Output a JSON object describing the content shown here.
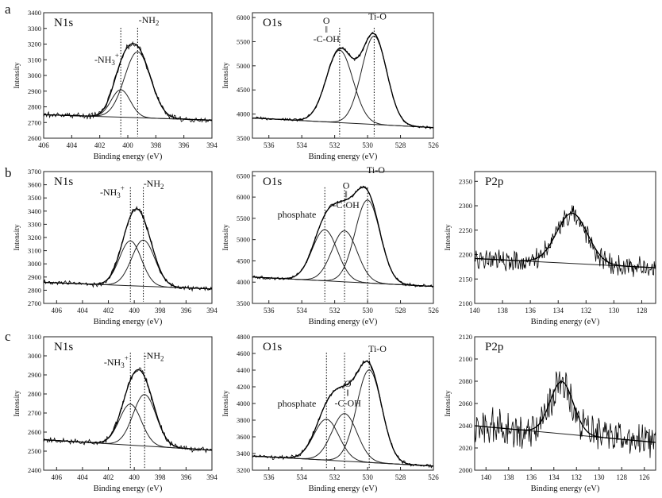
{
  "figure": {
    "row_labels": [
      "a",
      "b",
      "c"
    ]
  },
  "chart_data": [
    {
      "type": "line",
      "id": "a-n1s",
      "row": 0,
      "col": 0,
      "title": "N1s",
      "xlabel": "Binding energy (eV)",
      "ylabel": "Intensity",
      "xlim": [
        406,
        394
      ],
      "ylim": [
        2600,
        3400
      ],
      "xticks": [
        406,
        404,
        402,
        400,
        398,
        396,
        394
      ],
      "yticks": [
        2600,
        2700,
        2800,
        2900,
        3000,
        3100,
        3200,
        3300,
        3400
      ],
      "baseline": {
        "x0": 406,
        "y0": 2750,
        "x1": 394,
        "y1": 2715
      },
      "peaks": [
        {
          "name": "-NH3+",
          "center": 400.5,
          "height": 175,
          "fwhm": 1.6
        },
        {
          "name": "-NH2",
          "center": 399.3,
          "height": 420,
          "fwhm": 2.2
        }
      ],
      "dotted_lines": [
        400.5,
        399.3
      ],
      "noise": 15,
      "annotations": [
        {
          "text": "-NH3+",
          "x": 401.5,
          "y": 3080
        },
        {
          "text": "-NH2",
          "x": 398.5,
          "y": 3335
        }
      ]
    },
    {
      "type": "line",
      "id": "a-o1s",
      "row": 0,
      "col": 1,
      "title": "O1s",
      "xlabel": "Binding energy (eV)",
      "ylabel": "Intensity",
      "xlim": [
        537,
        526
      ],
      "ylim": [
        3500,
        6100
      ],
      "xticks": [
        536,
        534,
        532,
        530,
        528,
        526
      ],
      "yticks": [
        3500,
        4000,
        4500,
        5000,
        5500,
        6000
      ],
      "baseline": {
        "x0": 537,
        "y0": 3920,
        "x1": 526,
        "y1": 3720
      },
      "peaks": [
        {
          "name": "O=C-OH",
          "center": 531.7,
          "height": 1500,
          "fwhm": 1.9
        },
        {
          "name": "Ti-O",
          "center": 529.6,
          "height": 1830,
          "fwhm": 1.8
        }
      ],
      "dotted_lines": [
        531.7,
        529.6
      ],
      "noise": 25,
      "annotations": [
        {
          "text": "O",
          "x": 532.5,
          "y": 5870
        },
        {
          "text": "ǁ",
          "x": 532.5,
          "y": 5690
        },
        {
          "text": "-C-OH",
          "x": 532.5,
          "y": 5490
        },
        {
          "text": "Ti-O",
          "x": 529.4,
          "y": 5960
        }
      ]
    },
    {
      "type": "line",
      "id": "b-n1s",
      "row": 1,
      "col": 0,
      "title": "N1s",
      "xlabel": "Binding energy (eV)",
      "ylabel": "Intensity",
      "xlim": [
        407,
        394
      ],
      "ylim": [
        2700,
        3700
      ],
      "xticks": [
        406,
        404,
        402,
        400,
        398,
        396,
        394
      ],
      "yticks": [
        2700,
        2800,
        2900,
        3000,
        3100,
        3200,
        3300,
        3400,
        3500,
        3600,
        3700
      ],
      "baseline": {
        "x0": 407,
        "y0": 2860,
        "x1": 394,
        "y1": 2810
      },
      "peaks": [
        {
          "name": "-NH3+",
          "center": 400.3,
          "height": 340,
          "fwhm": 2.0
        },
        {
          "name": "-NH2",
          "center": 399.3,
          "height": 350,
          "fwhm": 2.1
        }
      ],
      "dotted_lines": [
        400.3,
        399.3
      ],
      "noise": 15,
      "annotations": [
        {
          "text": "-NH3+",
          "x": 401.7,
          "y": 3520
        },
        {
          "text": "-NH2",
          "x": 398.5,
          "y": 3585
        }
      ]
    },
    {
      "type": "line",
      "id": "b-o1s",
      "row": 1,
      "col": 1,
      "title": "O1s",
      "xlabel": "Binding energy (eV)",
      "ylabel": "Intensity",
      "xlim": [
        537,
        526
      ],
      "ylim": [
        3500,
        6600
      ],
      "xticks": [
        536,
        534,
        532,
        530,
        528,
        526
      ],
      "yticks": [
        3500,
        4000,
        4500,
        5000,
        5500,
        6000,
        6500
      ],
      "baseline": {
        "x0": 537,
        "y0": 4120,
        "x1": 526,
        "y1": 3900
      },
      "peaks": [
        {
          "name": "phosphate",
          "center": 532.6,
          "height": 1200,
          "fwhm": 1.8
        },
        {
          "name": "O=C-OH",
          "center": 531.4,
          "height": 1200,
          "fwhm": 1.8
        },
        {
          "name": "Ti-O",
          "center": 530.0,
          "height": 1950,
          "fwhm": 1.8
        }
      ],
      "dotted_lines": [
        532.6,
        531.4,
        530.0
      ],
      "noise": 30,
      "annotations": [
        {
          "text": "phosphate",
          "x": 534.3,
          "y": 5520
        },
        {
          "text": "O",
          "x": 531.3,
          "y": 6200
        },
        {
          "text": "ǁ",
          "x": 531.3,
          "y": 5990
        },
        {
          "text": "-C-OH",
          "x": 531.3,
          "y": 5740
        },
        {
          "text": "Ti-O",
          "x": 529.5,
          "y": 6560
        }
      ]
    },
    {
      "type": "line",
      "id": "b-p2p",
      "row": 1,
      "col": 2,
      "title": "P2p",
      "xlabel": "Binding energy (eV)",
      "ylabel": "Intensity",
      "xlim": [
        140,
        127
      ],
      "ylim": [
        2100,
        2370
      ],
      "xticks": [
        140,
        138,
        136,
        134,
        132,
        130,
        128
      ],
      "yticks": [
        2100,
        2150,
        2200,
        2250,
        2300,
        2350
      ],
      "baseline": {
        "x0": 140,
        "y0": 2192,
        "x1": 127,
        "y1": 2173
      },
      "peaks": [
        {
          "name": "P2p",
          "center": 133.0,
          "height": 103,
          "fwhm": 2.6
        }
      ],
      "dotted_lines": [],
      "noise": 18,
      "annotations": []
    },
    {
      "type": "line",
      "id": "c-n1s",
      "row": 2,
      "col": 0,
      "title": "N1s",
      "xlabel": "Binding energy (eV)",
      "ylabel": "Intensity",
      "xlim": [
        407,
        394
      ],
      "ylim": [
        2400,
        3100
      ],
      "xticks": [
        406,
        404,
        402,
        400,
        398,
        396,
        394
      ],
      "yticks": [
        2400,
        2500,
        2600,
        2700,
        2800,
        2900,
        3000,
        3100
      ],
      "baseline": {
        "x0": 407,
        "y0": 2560,
        "x1": 394,
        "y1": 2505
      },
      "peaks": [
        {
          "name": "-NH3+",
          "center": 400.3,
          "height": 215,
          "fwhm": 2.0
        },
        {
          "name": "-NH2",
          "center": 399.2,
          "height": 270,
          "fwhm": 2.1
        }
      ],
      "dotted_lines": [
        400.3,
        399.2
      ],
      "noise": 12,
      "annotations": [
        {
          "text": "-NH3+",
          "x": 401.4,
          "y": 2950
        },
        {
          "text": "-NH2",
          "x": 398.5,
          "y": 2985
        }
      ]
    },
    {
      "type": "line",
      "id": "c-o1s",
      "row": 2,
      "col": 1,
      "title": "O1s",
      "xlabel": "Binding energy (eV)",
      "ylabel": "Intensity",
      "xlim": [
        537,
        526
      ],
      "ylim": [
        3200,
        4800
      ],
      "xticks": [
        536,
        534,
        532,
        530,
        528,
        526
      ],
      "yticks": [
        3200,
        3400,
        3600,
        3800,
        4000,
        4200,
        4400,
        4600,
        4800
      ],
      "baseline": {
        "x0": 537,
        "y0": 3370,
        "x1": 526,
        "y1": 3250
      },
      "peaks": [
        {
          "name": "phosphate",
          "center": 532.5,
          "height": 490,
          "fwhm": 1.8
        },
        {
          "name": "O=C-OH",
          "center": 531.4,
          "height": 570,
          "fwhm": 1.8
        },
        {
          "name": "Ti-O",
          "center": 529.9,
          "height": 1110,
          "fwhm": 1.8
        }
      ],
      "dotted_lines": [
        532.5,
        531.4,
        529.9
      ],
      "noise": 20,
      "annotations": [
        {
          "text": "phosphate",
          "x": 534.3,
          "y": 3960
        },
        {
          "text": "O",
          "x": 531.2,
          "y": 4200
        },
        {
          "text": "ǁ",
          "x": 531.2,
          "y": 4090
        },
        {
          "text": "-C-OH",
          "x": 531.2,
          "y": 3965
        },
        {
          "text": "Ti-O",
          "x": 529.4,
          "y": 4620
        }
      ]
    },
    {
      "type": "line",
      "id": "c-p2p",
      "row": 2,
      "col": 2,
      "title": "P2p",
      "xlabel": "Binding energy (eV)",
      "ylabel": "Intensity",
      "xlim": [
        141,
        125
      ],
      "ylim": [
        2000,
        2120
      ],
      "xticks": [
        140,
        138,
        136,
        134,
        132,
        130,
        128,
        126
      ],
      "yticks": [
        2000,
        2020,
        2040,
        2060,
        2080,
        2100,
        2120
      ],
      "baseline": {
        "x0": 141,
        "y0": 2040,
        "x1": 125,
        "y1": 2025
      },
      "peaks": [
        {
          "name": "P2p",
          "center": 133.3,
          "height": 47,
          "fwhm": 2.4
        }
      ],
      "dotted_lines": [],
      "noise": 13,
      "annotations": []
    }
  ]
}
